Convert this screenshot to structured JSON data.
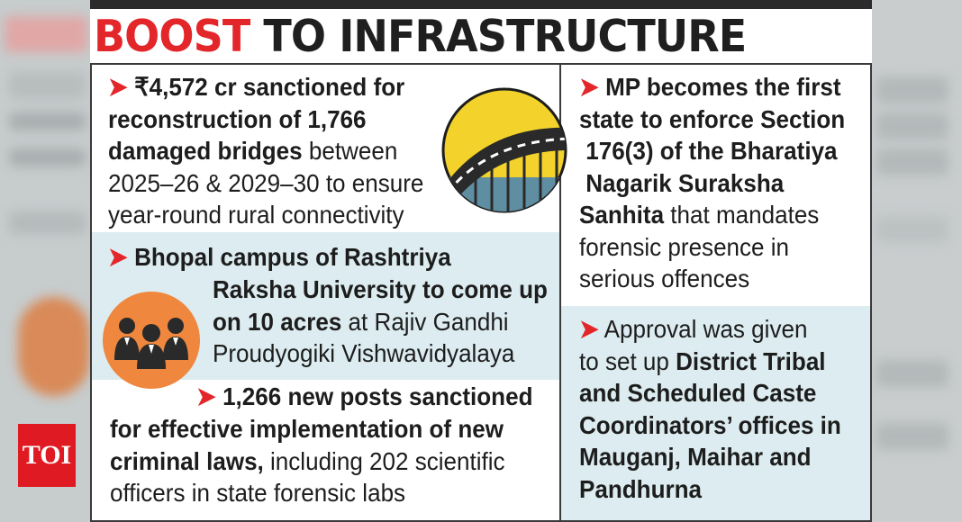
{
  "headline": {
    "red_part": "BOOST",
    "black_part": "TO INFRASTRUCTURE"
  },
  "brand": {
    "logo_text": "TOI",
    "color": "#e01a22"
  },
  "colors": {
    "accent_red": "#e3262a",
    "panel_blue": "#dcecf0",
    "icon_yellow": "#f2d22b",
    "icon_orange": "#f0873e"
  },
  "icons": {
    "bridge": "bridge-icon",
    "people": "people-group-icon"
  },
  "arrow_glyph": "➤",
  "items": {
    "bridges": {
      "l1_bold": "₹4,572 cr sanctioned for",
      "l2_bold": "reconstruction of 1,766",
      "l3_bold": "damaged bridges",
      "l3_reg": " between",
      "l4": "2025–26 & 2029–30 to ensure",
      "l5": "year-round rural connectivity"
    },
    "campus": {
      "l1_bold": "Bhopal campus of Rashtriya",
      "l2_bold": "Raksha University to come up",
      "l3_bold": "on 10 acres",
      "l3_reg": " at Rajiv Gandhi",
      "l4": "Proudyogiki Vishwavidyalaya"
    },
    "posts": {
      "l1_bold": "1,266 new posts sanctioned",
      "l2_bold": "for effective implementation of new",
      "l3_bold": "criminal laws,",
      "l3_reg": " including 202 scientific",
      "l4": "officers in state forensic labs"
    },
    "section": {
      "l1_bold": "MP becomes the first",
      "l2_bold": "state to enforce Section",
      "l3_bold": "176(3) of the Bharatiya",
      "l4_bold": "Nagarik Suraksha",
      "l5_bold": "Sanhita",
      "l5_reg": " that mandates",
      "l6": "forensic presence in",
      "l7": "serious offences"
    },
    "approval": {
      "l1": "Approval was given",
      "l2_reg": "to set up ",
      "l2_bold": "District Tribal",
      "l3_bold": "and Scheduled Caste",
      "l4_bold": "Coordinators’ offices in",
      "l5_bold": "Mauganj, Maihar and",
      "l6_bold": "Pandhurna"
    }
  }
}
